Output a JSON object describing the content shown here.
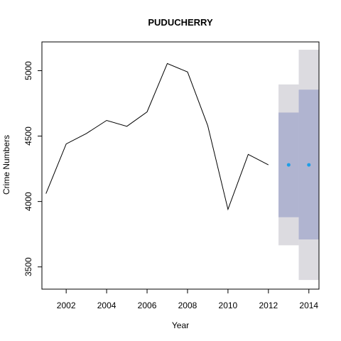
{
  "chart_data": {
    "type": "line",
    "title": "PUDUCHERRY",
    "xlabel": "Year",
    "ylabel": "Crime Numbers",
    "xlim": [
      2000.8,
      2014.5
    ],
    "ylim": [
      3330,
      5220
    ],
    "x_ticks": [
      "2002",
      "2004",
      "2006",
      "2008",
      "2010",
      "2012",
      "2014"
    ],
    "y_ticks": [
      "3500",
      "4000",
      "4500",
      "5000"
    ],
    "grid": false,
    "history": {
      "x": [
        2001,
        2002,
        2003,
        2004,
        2005,
        2006,
        2007,
        2008,
        2009,
        2010,
        2011,
        2012
      ],
      "y": [
        4060,
        4440,
        4520,
        4620,
        4575,
        4685,
        5055,
        4990,
        4580,
        3940,
        4360,
        4280
      ],
      "color": "#000000"
    },
    "forecast": {
      "x": [
        2013,
        2014
      ],
      "mean": [
        4280,
        4280
      ],
      "lo80": [
        3880,
        3710
      ],
      "hi80": [
        4680,
        4855
      ],
      "lo95": [
        3665,
        3400
      ],
      "hi95": [
        4895,
        5160
      ],
      "point_color": "#1f9ee6",
      "band80_color": "#b0b4d0",
      "band95_color": "#dcdbe0"
    }
  }
}
